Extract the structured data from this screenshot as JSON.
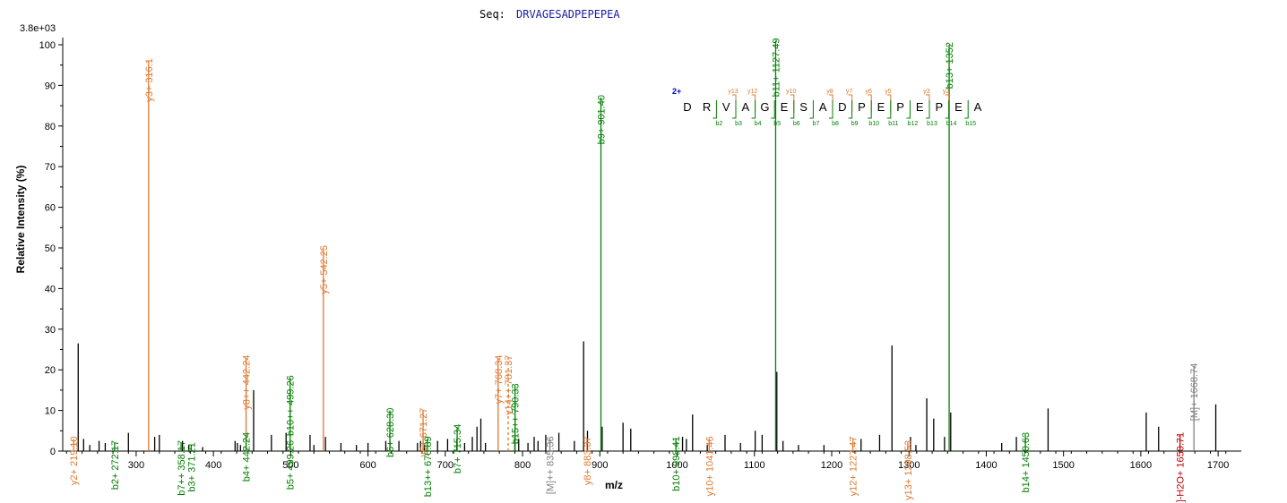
{
  "header": {
    "seq_label": "Seq:",
    "seq_value": "DRVAGESADPEPEPEA",
    "scale_label": "3.8e+03"
  },
  "chart_data": {
    "type": "bar",
    "title": "Seq: DRVAGESADPEPEPEA",
    "xlabel": "m/z",
    "ylabel": "Relative  Intensity (%)",
    "xlim": [
      205,
      1730
    ],
    "ylim": [
      0,
      100
    ],
    "max_intensity_label": "3.8e+03",
    "x_ticks": [
      300,
      400,
      500,
      600,
      700,
      800,
      900,
      1000,
      1100,
      1200,
      1300,
      1400,
      1500,
      1600,
      1700
    ],
    "y_ticks": [
      0,
      10,
      20,
      30,
      40,
      50,
      60,
      70,
      80,
      90,
      100
    ],
    "colors": {
      "b": "#008000",
      "y": "#E07830",
      "M": "#808080",
      "water": "#C00000",
      "unmatched": "#000000",
      "seq_blue": "#1a1aa6",
      "charge_blue": "#0000cc"
    },
    "annotated_peaks": [
      {
        "mz": 219.1,
        "intensity": 3,
        "label": "y2+ 219.10",
        "ion": "y"
      },
      {
        "mz": 272.17,
        "intensity": 2,
        "label": "b2+ 272.17",
        "ion": "b"
      },
      {
        "mz": 316.1,
        "intensity": 96,
        "label": "y3+ 316.1",
        "ion": "y"
      },
      {
        "mz": 358.17,
        "intensity": 2,
        "label": "b7++ 358.17",
        "ion": "b"
      },
      {
        "mz": 371.21,
        "intensity": 1.5,
        "label": "b3+ 371.21",
        "ion": "b"
      },
      {
        "mz": 442.24,
        "intensity": 23,
        "label": "y8++ 442.24",
        "ion": "y"
      },
      {
        "mz": 442.24,
        "intensity": 4,
        "label": "b4+ 442.24",
        "ion": "b"
      },
      {
        "mz": 499.26,
        "intensity": 18,
        "label": "b10++ 499.26",
        "ion": "b"
      },
      {
        "mz": 499.26,
        "intensity": 2,
        "label": "b5+ 499.26",
        "ion": "b"
      },
      {
        "mz": 542.25,
        "intensity": 50,
        "label": "y5+ 542.25",
        "ion": "y"
      },
      {
        "mz": 628.3,
        "intensity": 10,
        "label": "b6+ 628.30",
        "ion": "b"
      },
      {
        "mz": 671.27,
        "intensity": 10,
        "label": "y6+ 671.27",
        "ion": "y"
      },
      {
        "mz": 676.89,
        "intensity": 3,
        "label": "b13++ 676.89",
        "ion": "b"
      },
      {
        "mz": 715.34,
        "intensity": 6,
        "label": "b7+ 715.34",
        "ion": "b"
      },
      {
        "mz": 768.34,
        "intensity": 23,
        "label": "y7+ 768.34",
        "ion": "y"
      },
      {
        "mz": 781.37,
        "intensity": 23,
        "label": "y14++ 781.37",
        "ion": "y"
      },
      {
        "mz": 790.33,
        "intensity": 16,
        "label": "b15++ 790.33",
        "ion": "b"
      },
      {
        "mz": 835.36,
        "intensity": 3,
        "label": "[M]++ 835.36",
        "ion": "M"
      },
      {
        "mz": 883.37,
        "intensity": 3,
        "label": "y8+ 883.37",
        "ion": "y"
      },
      {
        "mz": 901.4,
        "intensity": 87,
        "label": "b9+ 901.40",
        "ion": "b"
      },
      {
        "mz": 998.41,
        "intensity": 3,
        "label": "b10+ 998.41",
        "ion": "b"
      },
      {
        "mz": 1041.46,
        "intensity": 3,
        "label": "y10+ 1041.46",
        "ion": "y"
      },
      {
        "mz": 1127.49,
        "intensity": 101,
        "label": "b11+ 1127.49",
        "ion": "b"
      },
      {
        "mz": 1227.47,
        "intensity": 3,
        "label": "y12+ 1227.47",
        "ion": "y"
      },
      {
        "mz": 1298.53,
        "intensity": 2,
        "label": "y13+ 1298.53",
        "ion": "y"
      },
      {
        "mz": 1352.0,
        "intensity": 100,
        "label": "b13+ 1352",
        "ion": "b"
      },
      {
        "mz": 1450.63,
        "intensity": 4,
        "label": "b14+ 1450.63",
        "ion": "b"
      },
      {
        "mz": 1650.71,
        "intensity": 4,
        "label": "[M]-H2O+ 1650.71",
        "ion": "water"
      },
      {
        "mz": 1668.74,
        "intensity": 21,
        "label": "[M]+ 1668.74",
        "ion": "M"
      }
    ],
    "unlabeled_peaks": [
      [
        225,
        26.5
      ],
      [
        232,
        3
      ],
      [
        240,
        1.5
      ],
      [
        252,
        2.5
      ],
      [
        260,
        2
      ],
      [
        290,
        4.5
      ],
      [
        324,
        3.5
      ],
      [
        330,
        4
      ],
      [
        360,
        2.5
      ],
      [
        368,
        1.5
      ],
      [
        386,
        1
      ],
      [
        428,
        2.5
      ],
      [
        431,
        2
      ],
      [
        435,
        1.5
      ],
      [
        452,
        15
      ],
      [
        475,
        4
      ],
      [
        494,
        4.5
      ],
      [
        525,
        4
      ],
      [
        530,
        1.5
      ],
      [
        545,
        3.5
      ],
      [
        565,
        2
      ],
      [
        585,
        1.5
      ],
      [
        600,
        2
      ],
      [
        623,
        2.5
      ],
      [
        640,
        2.5
      ],
      [
        664,
        2
      ],
      [
        668,
        2.5
      ],
      [
        673,
        1.5
      ],
      [
        690,
        2.5
      ],
      [
        703,
        3
      ],
      [
        715,
        3
      ],
      [
        725,
        2
      ],
      [
        735,
        3.5
      ],
      [
        741,
        6
      ],
      [
        746,
        8
      ],
      [
        752,
        2
      ],
      [
        790,
        3.5
      ],
      [
        795,
        3
      ],
      [
        807,
        2
      ],
      [
        815,
        3.5
      ],
      [
        820,
        2.5
      ],
      [
        830,
        4
      ],
      [
        847,
        4.5
      ],
      [
        867,
        2.5
      ],
      [
        879,
        27
      ],
      [
        884,
        5
      ],
      [
        903,
        6
      ],
      [
        930,
        7
      ],
      [
        940,
        5.5
      ],
      [
        1007,
        3.5
      ],
      [
        1012,
        3
      ],
      [
        1020,
        9
      ],
      [
        1039,
        1.5
      ],
      [
        1062,
        4
      ],
      [
        1082,
        2
      ],
      [
        1101,
        5
      ],
      [
        1110,
        4
      ],
      [
        1129,
        19.5
      ],
      [
        1137,
        2.5
      ],
      [
        1157,
        1.5
      ],
      [
        1190,
        1.5
      ],
      [
        1238,
        3
      ],
      [
        1262,
        4
      ],
      [
        1278,
        26
      ],
      [
        1302,
        3.5
      ],
      [
        1309,
        1.5
      ],
      [
        1323,
        13
      ],
      [
        1332,
        8
      ],
      [
        1346,
        3.5
      ],
      [
        1354,
        9.5
      ],
      [
        1420,
        2
      ],
      [
        1439,
        3.5
      ],
      [
        1480,
        10.5
      ],
      [
        1607,
        9.5
      ],
      [
        1623,
        6
      ],
      [
        1697,
        11.5
      ]
    ],
    "fragment_map": {
      "charge": "2+",
      "residues": [
        "D",
        "R",
        "V",
        "A",
        "G",
        "E",
        "S",
        "A",
        "D",
        "P",
        "E",
        "P",
        "E",
        "P",
        "E",
        "A"
      ],
      "y_ions": [
        "y13",
        "y12",
        "y10",
        "y8",
        "y7",
        "y6",
        "y5",
        "y3",
        "y2"
      ],
      "b_ions": [
        "b2",
        "b3",
        "b4",
        "b5",
        "b6",
        "b7",
        "b8",
        "b9",
        "b10",
        "b11",
        "b12",
        "b13",
        "b14",
        "b15"
      ]
    }
  }
}
